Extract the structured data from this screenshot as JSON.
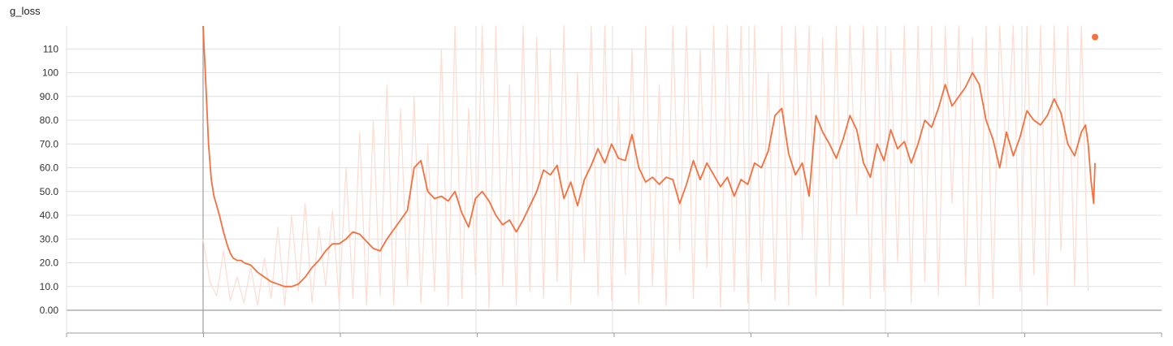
{
  "chart_data": {
    "type": "line",
    "title": "g_loss",
    "xlabel": "",
    "ylabel": "",
    "y_ticks": [
      "0.00",
      "10.0",
      "20.0",
      "30.0",
      "40.0",
      "50.0",
      "60.0",
      "70.0",
      "80.0",
      "90.0",
      "100",
      "110"
    ],
    "x_tick_labels": [],
    "ylim": [
      -10,
      120
    ],
    "xlim": [
      -100,
      700
    ],
    "grid": true,
    "legend": "none",
    "colors": {
      "smoothed": "#f4703f",
      "raw": "#fddcd1",
      "grid": "#e0e0e0",
      "axis": "#9e9e9e"
    },
    "series": [
      {
        "role": "raw",
        "x": [
          0,
          5,
          10,
          15,
          20,
          25,
          30,
          35,
          40,
          45,
          50,
          55,
          60,
          65,
          70,
          75,
          80,
          85,
          90,
          95,
          100,
          105,
          110,
          115,
          120,
          125,
          130,
          135,
          140,
          145,
          150,
          155,
          160,
          165,
          170,
          175,
          180,
          185,
          190,
          195,
          200,
          205,
          210,
          215,
          220,
          225,
          230,
          235,
          240,
          245,
          250,
          255,
          260,
          265,
          270,
          275,
          280,
          285,
          290,
          295,
          300,
          305,
          310,
          315,
          320,
          325,
          330,
          335,
          340,
          345,
          350,
          355,
          360,
          365,
          370,
          375,
          380,
          385,
          390,
          395,
          400,
          405,
          410,
          415,
          420,
          425,
          430,
          435,
          440,
          445,
          450,
          455,
          460,
          465,
          470,
          475,
          480,
          485,
          490,
          495,
          500,
          505,
          510,
          515,
          520,
          525,
          530,
          535,
          540,
          545,
          550,
          555,
          560,
          565,
          570,
          575,
          580,
          585,
          590,
          595,
          600,
          605,
          610,
          615,
          620,
          625,
          630,
          635,
          640,
          645,
          650
        ],
        "values": [
          30,
          12,
          6,
          25,
          4,
          14,
          3,
          18,
          2,
          22,
          5,
          35,
          2,
          40,
          8,
          45,
          3,
          35,
          10,
          42,
          3,
          60,
          5,
          75,
          2,
          80,
          6,
          95,
          2,
          85,
          10,
          90,
          3,
          70,
          8,
          110,
          2,
          120,
          5,
          85,
          15,
          130,
          1,
          120,
          10,
          95,
          2,
          130,
          8,
          115,
          5,
          110,
          12,
          130,
          3,
          100,
          20,
          120,
          6,
          130,
          4,
          90,
          15,
          110,
          3,
          130,
          10,
          95,
          2,
          120,
          25,
          130,
          5,
          110,
          18,
          130,
          1,
          130,
          8,
          120,
          3,
          130,
          12,
          100,
          4,
          130,
          2,
          120,
          30,
          130,
          6,
          115,
          10,
          130,
          2,
          130,
          40,
          120,
          5,
          130,
          8,
          110,
          20,
          130,
          3,
          125,
          12,
          130,
          6,
          120,
          45,
          130,
          10,
          115,
          2,
          130,
          5,
          125,
          60,
          130,
          8,
          130,
          15,
          120,
          2,
          130,
          25,
          125,
          10,
          130,
          8
        ]
      },
      {
        "role": "smoothed",
        "x": [
          0,
          2,
          4,
          6,
          8,
          10,
          12,
          15,
          18,
          20,
          22,
          25,
          28,
          30,
          35,
          40,
          45,
          50,
          55,
          60,
          65,
          70,
          75,
          80,
          85,
          90,
          95,
          100,
          105,
          110,
          115,
          120,
          125,
          130,
          135,
          140,
          145,
          150,
          155,
          160,
          165,
          170,
          175,
          180,
          185,
          190,
          195,
          200,
          205,
          210,
          215,
          220,
          225,
          230,
          235,
          240,
          245,
          250,
          255,
          260,
          265,
          270,
          275,
          280,
          285,
          290,
          295,
          300,
          305,
          310,
          315,
          320,
          325,
          330,
          335,
          340,
          345,
          350,
          355,
          360,
          365,
          370,
          375,
          380,
          385,
          390,
          395,
          400,
          405,
          410,
          415,
          420,
          425,
          430,
          435,
          440,
          445,
          450,
          455,
          460,
          465,
          470,
          475,
          480,
          485,
          490,
          495,
          500,
          505,
          510,
          515,
          520,
          525,
          530,
          535,
          540,
          545,
          550,
          555,
          560,
          565,
          570,
          575,
          580,
          585,
          590,
          595,
          600,
          605,
          610,
          615,
          620,
          625,
          630,
          635,
          640,
          645,
          648,
          650,
          652,
          654,
          655
        ],
        "values": [
          120,
          95,
          70,
          55,
          48,
          44,
          40,
          33,
          27,
          24,
          22,
          21,
          21,
          20,
          19,
          16,
          14,
          12,
          11,
          10,
          10,
          11,
          14,
          18,
          21,
          25,
          28,
          28,
          30,
          33,
          32,
          29,
          26,
          25,
          30,
          34,
          38,
          42,
          60,
          63,
          50,
          47,
          48,
          46,
          50,
          41,
          35,
          47,
          50,
          46,
          40,
          36,
          38,
          33,
          38,
          44,
          50,
          59,
          57,
          61,
          47,
          54,
          44,
          55,
          61,
          68,
          62,
          70,
          64,
          63,
          74,
          60,
          54,
          56,
          53,
          56,
          55,
          45,
          53,
          63,
          55,
          62,
          57,
          52,
          56,
          48,
          55,
          53,
          62,
          60,
          67,
          82,
          85,
          66,
          57,
          62,
          48,
          82,
          75,
          70,
          64,
          72,
          82,
          76,
          62,
          56,
          70,
          63,
          76,
          68,
          71,
          62,
          70,
          80,
          77,
          85,
          95,
          86,
          90,
          94,
          100,
          95,
          80,
          72,
          60,
          75,
          65,
          73,
          84,
          80,
          78,
          82,
          89,
          83,
          70,
          65,
          75,
          78,
          70,
          55,
          45,
          62
        ]
      }
    ]
  }
}
